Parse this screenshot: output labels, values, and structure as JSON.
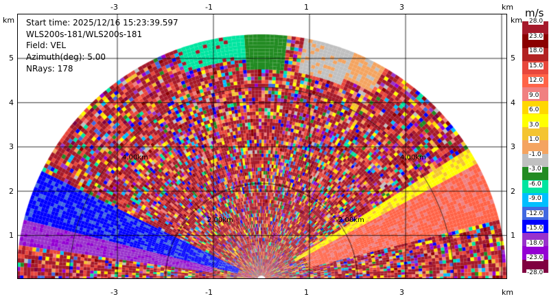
{
  "info": {
    "start_time": "Start time: 2025/12/16 15:23:39.597",
    "instrument": "WLS200s-181/WLS200s-181",
    "field": "Field: VEL",
    "azimuth": "Azimuth(deg): 5.00",
    "nrays": "NRays: 178"
  },
  "axes": {
    "x_ticks_top": [
      "-3",
      "-1",
      "1",
      "3"
    ],
    "x_ticks_bottom": [
      "-3",
      "-1",
      "1",
      "3"
    ],
    "y_ticks_left": [
      "5",
      "4",
      "3",
      "2",
      "1"
    ],
    "y_ticks_right": [
      "5",
      "4",
      "3",
      "2",
      "1"
    ],
    "x_unit": "km",
    "y_unit": "km"
  },
  "range_rings": [
    "2.00km",
    "4.00km"
  ],
  "colorbar": {
    "unit": "m/s",
    "labels": [
      "28.0",
      "23.0",
      "18.0",
      "15.0",
      "12.0",
      "9.0",
      "6.0",
      "3.0",
      "1.0",
      "-1.0",
      "-3.0",
      "-6.0",
      "-9.0",
      "-12.0",
      "-15.0",
      "-18.0",
      "-23.0",
      "-28.0"
    ],
    "colors": [
      "#a5192a",
      "#8b0000",
      "#b22222",
      "#e8473c",
      "#ff6347",
      "#f08080",
      "#ffd700",
      "#ffff00",
      "#f4c430",
      "#f4a460",
      "#c0c0c0",
      "#228b22",
      "#00e5a0",
      "#00bfff",
      "#4169e1",
      "#0000ff",
      "#9932cc",
      "#9400d3",
      "#800040"
    ]
  }
}
